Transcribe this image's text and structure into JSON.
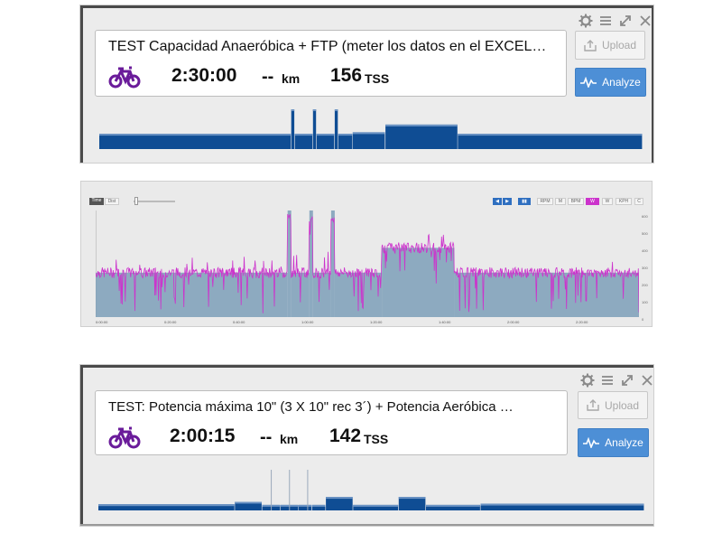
{
  "workout1": {
    "title": "TEST Capacidad Anaeróbica + FTP (meter los datos en el EXCEL…",
    "duration": "2:30:00",
    "distance": "--",
    "distance_unit": "km",
    "tss": "156",
    "tss_unit": "TSS",
    "upload_label": "Upload",
    "analyze_label": "Analyze"
  },
  "workout2": {
    "title": "TEST:  Potencia máxima 10\" (3 X 10\" rec 3´)  + Potencia Aeróbica …",
    "duration": "2:00:15",
    "distance": "--",
    "distance_unit": "km",
    "tss": "142",
    "tss_unit": "TSS",
    "upload_label": "Upload",
    "analyze_label": "Analyze"
  },
  "chart_toolbar": {
    "time_label": "Time",
    "dist_label": "Dist",
    "channels": [
      "RPM",
      "M",
      "BPM",
      "W",
      "W",
      "KPH",
      "C"
    ],
    "active_channel": "W"
  },
  "colors": {
    "accent": "#4d8fd6",
    "bar": "#0f4d94",
    "power_line": "#cc33cc",
    "bike": "#6a1b9a"
  },
  "chart_data": {
    "type": "area",
    "x_tick_labels": [
      "0:00:00",
      "0:20:00",
      "0:40:00",
      "1:00:00",
      "1:20:00",
      "1:40:00",
      "2:00:00",
      "2:20:00"
    ],
    "y_tick_labels": [
      "600",
      "500",
      "400",
      "300",
      "200",
      "100",
      "0"
    ],
    "ylim": [
      0,
      600
    ],
    "xlim_minutes": [
      0,
      150
    ],
    "target_segments": [
      {
        "start": 0,
        "end": 53,
        "watts": 250
      },
      {
        "start": 53,
        "end": 54,
        "watts": 600
      },
      {
        "start": 54,
        "end": 59,
        "watts": 250
      },
      {
        "start": 59,
        "end": 60,
        "watts": 600
      },
      {
        "start": 60,
        "end": 65,
        "watts": 250
      },
      {
        "start": 65,
        "end": 66,
        "watts": 600
      },
      {
        "start": 66,
        "end": 79,
        "watts": 250
      },
      {
        "start": 79,
        "end": 99,
        "watts": 390
      },
      {
        "start": 99,
        "end": 150,
        "watts": 250
      }
    ]
  },
  "workout1_structure": {
    "segments": [
      {
        "start": 0,
        "end": 53,
        "level": 1.0
      },
      {
        "start": 53,
        "end": 54,
        "level": 2.6
      },
      {
        "start": 54,
        "end": 59,
        "level": 1.0
      },
      {
        "start": 59,
        "end": 60,
        "level": 2.6
      },
      {
        "start": 60,
        "end": 65,
        "level": 1.0
      },
      {
        "start": 65,
        "end": 66,
        "level": 2.6
      },
      {
        "start": 66,
        "end": 70,
        "level": 1.0
      },
      {
        "start": 70,
        "end": 79,
        "level": 1.1
      },
      {
        "start": 79,
        "end": 99,
        "level": 1.6
      },
      {
        "start": 99,
        "end": 150,
        "level": 1.0
      }
    ],
    "max_level": 2.6,
    "total": 150
  },
  "workout2_structure": {
    "segments": [
      {
        "start": 0,
        "end": 30,
        "level": 0.5
      },
      {
        "start": 30,
        "end": 36,
        "level": 0.7
      },
      {
        "start": 36,
        "end": 40,
        "level": 0.45
      },
      {
        "start": 40,
        "end": 44,
        "level": 0.45
      },
      {
        "start": 44,
        "end": 47,
        "level": 0.45
      },
      {
        "start": 47,
        "end": 50,
        "level": 0.45
      },
      {
        "start": 50,
        "end": 56,
        "level": 1.1
      },
      {
        "start": 56,
        "end": 66,
        "level": 0.45
      },
      {
        "start": 66,
        "end": 72,
        "level": 1.1
      },
      {
        "start": 72,
        "end": 84,
        "level": 0.45
      },
      {
        "start": 84,
        "end": 120,
        "level": 0.55
      }
    ],
    "spikes": [
      38,
      42,
      46
    ],
    "max_level": 3.4,
    "total": 120
  }
}
